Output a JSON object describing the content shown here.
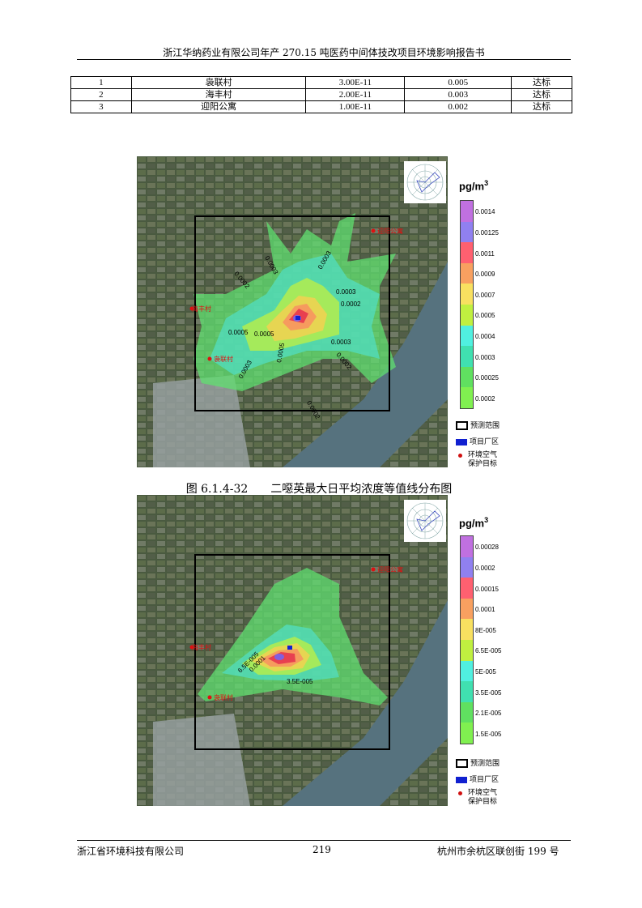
{
  "header": {
    "title": "浙江华纳药业有限公司年产 270.15 吨医药中间体技改项目环境影响报告书"
  },
  "table": {
    "rows": [
      [
        "1",
        "袅联村",
        "3.00E-11",
        "0.005",
        "达标"
      ],
      [
        "2",
        "海丰村",
        "2.00E-11",
        "0.003",
        "达标"
      ],
      [
        "3",
        "迎阳公寓",
        "1.00E-11",
        "0.002",
        "达标"
      ]
    ]
  },
  "map1": {
    "unit": "pg/m",
    "unit_sup": "3",
    "legend_ticks": [
      "0.0014",
      "0.00125",
      "0.0011",
      "0.0009",
      "0.0007",
      "0.0005",
      "0.0004",
      "0.0003",
      "0.00025",
      "0.0002"
    ],
    "legend_colors": [
      "#c070e0",
      "#9080f0",
      "#ff6070",
      "#f8a060",
      "#f8e060",
      "#c0f040",
      "#50f0e0",
      "#40e0b0",
      "#60e060",
      "#80f050"
    ],
    "contour_labels": [
      "0.0003",
      "0.0002",
      "0.0003",
      "0.0005",
      "0.0005",
      "0.0003",
      "0.0002",
      "0.0003",
      "0.0003",
      "0.0002",
      "0.0002",
      "0.0005"
    ],
    "sites": [
      "迎阳公寓",
      "海丰村",
      "袅联村"
    ]
  },
  "caption": {
    "text": "图 6.1.4-32　　二噁英最大日平均浓度等值线分布图"
  },
  "map2": {
    "unit": "pg/m",
    "unit_sup": "3",
    "legend_ticks": [
      "0.00028",
      "0.0002",
      "0.00015",
      "0.0001",
      "8E-005",
      "6.5E-005",
      "5E-005",
      "3.5E-005",
      "2.1E-005",
      "1.5E-005"
    ],
    "legend_colors": [
      "#c070e0",
      "#9080f0",
      "#ff6070",
      "#f8a060",
      "#f8e060",
      "#c0f040",
      "#50f0e0",
      "#40e0b0",
      "#60e060",
      "#80f050"
    ],
    "contour_labels": [
      "6.5E-005",
      "0.0001",
      "3.5E-005"
    ],
    "sites": [
      "迎阳公寓",
      "海丰村",
      "袅联村"
    ]
  },
  "legend_keys": {
    "range": "预测范围",
    "plant": "项目厂区",
    "targets_line1": "环境空气",
    "targets_line2": "保护目标"
  },
  "footer": {
    "left": "浙江省环境科技有限公司",
    "page": "219",
    "right": "杭州市余杭区联创街 199 号"
  }
}
